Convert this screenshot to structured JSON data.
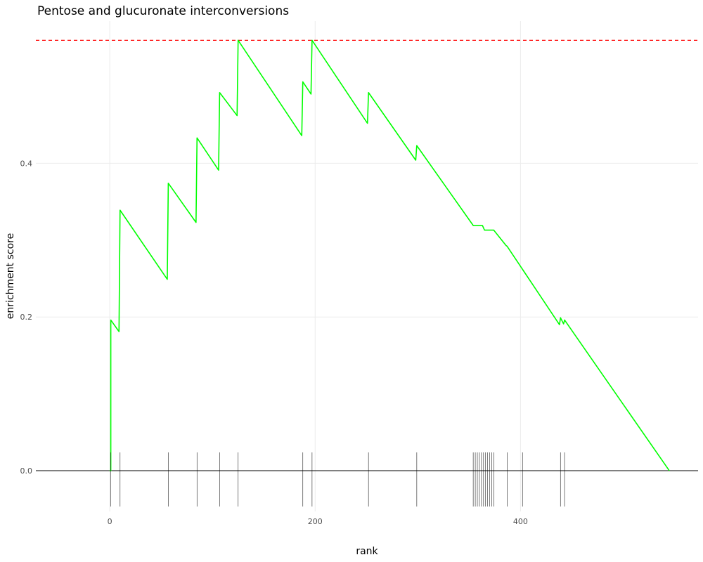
{
  "chart_data": {
    "type": "line",
    "title": "Pentose and glucuronate interconversions",
    "xlabel": "rank",
    "ylabel": "enrichment score",
    "xlim": [
      -72,
      573
    ],
    "ylim": [
      -0.053,
      0.585
    ],
    "x_ticks": [
      0,
      200,
      400
    ],
    "x_tick_labels": [
      "0",
      "200",
      "400"
    ],
    "y_ticks": [
      0.0,
      0.2,
      0.4
    ],
    "y_tick_labels": [
      "0.0",
      "0.2",
      "0.4"
    ],
    "grid": true,
    "max_es": 0.56,
    "series": [
      {
        "color": "#00ff00",
        "x": [
          0,
          1,
          1,
          9,
          10,
          56,
          57,
          84,
          85,
          106,
          107,
          124,
          125,
          187,
          188,
          196,
          197,
          251,
          252,
          298,
          299,
          354,
          363,
          365,
          374,
          386,
          387,
          401,
          402,
          438,
          439,
          442,
          443,
          545
        ],
        "y": [
          0.0,
          0.0,
          0.196,
          0.181,
          0.339,
          0.249,
          0.374,
          0.323,
          0.433,
          0.391,
          0.492,
          0.462,
          0.56,
          0.436,
          0.506,
          0.49,
          0.56,
          0.452,
          0.492,
          0.404,
          0.423,
          0.319,
          0.319,
          0.313,
          0.313,
          0.293,
          0.292,
          0.264,
          0.262,
          0.19,
          0.199,
          0.191,
          0.196,
          0.0
        ]
      }
    ],
    "hit_positions": [
      1,
      10,
      57,
      85,
      107,
      125,
      188,
      197,
      252,
      299,
      354,
      356,
      358,
      360,
      362,
      364,
      366,
      368,
      370,
      372,
      374,
      387,
      402,
      439,
      443
    ],
    "colors": {
      "running_score": "#00ff00",
      "max_line": "#ff0000",
      "hits": "#000000",
      "zero_line": "#000000",
      "grid": "#ebebeb"
    }
  }
}
